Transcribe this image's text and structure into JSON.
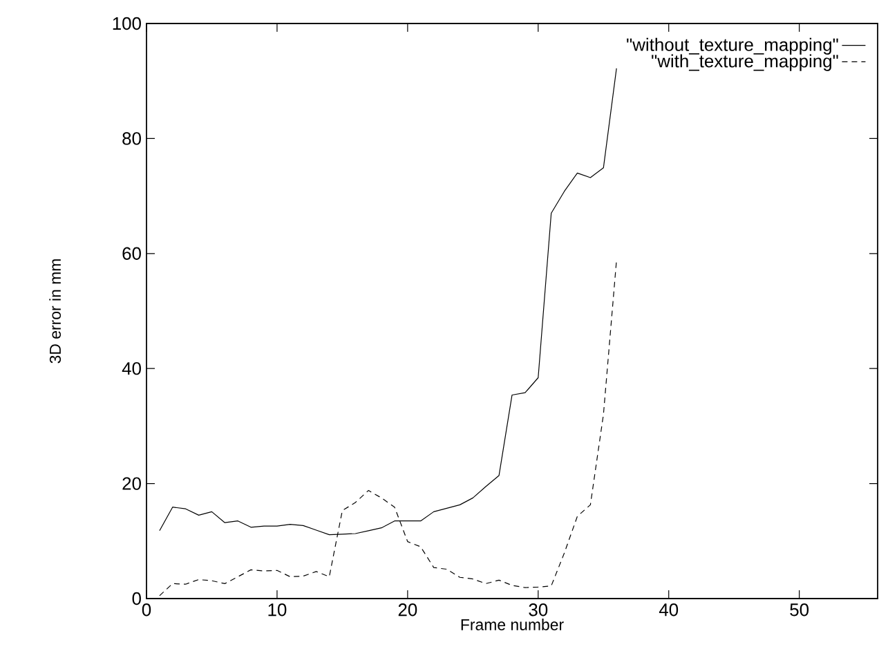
{
  "chart_data": {
    "type": "line",
    "xlabel": "Frame number",
    "ylabel": "3D error in mm",
    "x": [
      1,
      2,
      3,
      4,
      5,
      6,
      7,
      8,
      9,
      10,
      11,
      12,
      13,
      14,
      15,
      16,
      17,
      18,
      19,
      20,
      21,
      22,
      23,
      24,
      25,
      26,
      27,
      28,
      29,
      30,
      31,
      32,
      33,
      34,
      35,
      36
    ],
    "series": [
      {
        "name": "\"without_texture_mapping\"",
        "color": "#000000",
        "line_style": "solid",
        "values": [
          11.8,
          15.9,
          15.6,
          14.5,
          15.1,
          13.2,
          13.5,
          12.4,
          12.6,
          12.6,
          12.9,
          12.7,
          11.9,
          11.1,
          11.2,
          11.3,
          11.8,
          12.3,
          13.5,
          13.5,
          13.5,
          15.1,
          15.7,
          16.3,
          17.5,
          19.5,
          21.4,
          35.4,
          35.8,
          38.4,
          67.0,
          70.8,
          74.0,
          73.2,
          74.9,
          92.2
        ]
      },
      {
        "name": "\"with_texture_mapping\"",
        "color": "#000000",
        "line_style": "dashed",
        "values": [
          0.5,
          2.6,
          2.5,
          3.3,
          3.1,
          2.6,
          3.8,
          5.0,
          4.8,
          4.9,
          3.8,
          3.9,
          4.7,
          3.8,
          15.3,
          16.7,
          18.8,
          17.5,
          15.9,
          9.9,
          9.0,
          5.4,
          5.1,
          3.7,
          3.4,
          2.6,
          3.2,
          2.3,
          1.9,
          2.0,
          2.2,
          7.9,
          14.3,
          16.3,
          32.0,
          58.8
        ]
      }
    ],
    "xlim": [
      0,
      56
    ],
    "ylim": [
      0,
      100
    ],
    "xticks": [
      0,
      10,
      20,
      30,
      40,
      50
    ],
    "yticks": [
      0,
      20,
      40,
      60,
      80,
      100
    ],
    "legend": "top right",
    "grid": false,
    "marker": "none"
  }
}
